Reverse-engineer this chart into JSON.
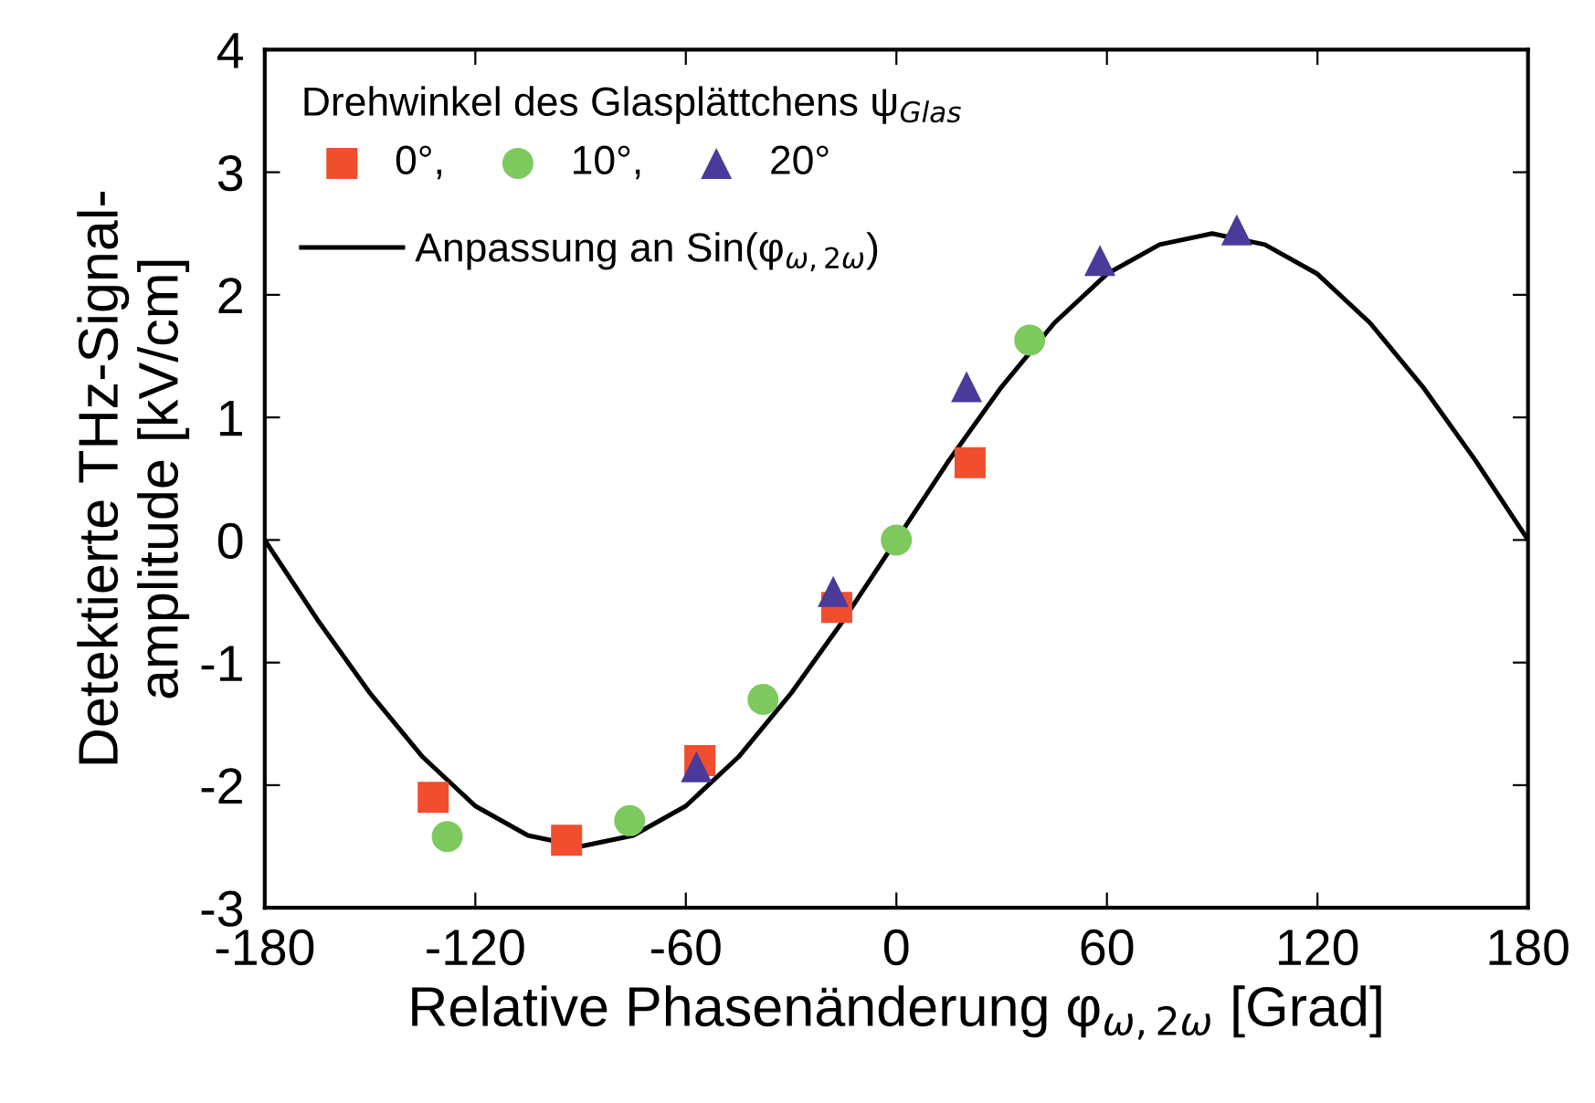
{
  "chart_data": {
    "type": "scatter",
    "xlabel": "Relative Phasenänderung φ$_{ω,2ω}$ [Grad]",
    "ylabel": "Detektierte THz-Signal-\namplitude [kV/cm]",
    "legend_title": "Drehwinkel des Glasplättchens ψ$_{Glas}$",
    "legend": "top left",
    "grid": false,
    "xlim": [
      -180,
      180
    ],
    "xticks": [
      -180,
      -120,
      -60,
      0,
      60,
      120,
      180
    ],
    "ylim": [
      -3,
      4
    ],
    "yticks": [
      -3,
      -2,
      -1,
      0,
      1,
      2,
      3,
      4
    ],
    "series": [
      {
        "name": "0°,",
        "marker": "square",
        "color": "#f04e2f",
        "x": [
          -132,
          -94,
          -56,
          -17,
          21
        ],
        "values": [
          -2.1,
          -2.45,
          -1.8,
          -0.55,
          0.63
        ]
      },
      {
        "name": "10°,",
        "marker": "circle",
        "color": "#7dc95e",
        "x": [
          -128,
          -76,
          -38,
          0,
          38
        ],
        "values": [
          -2.42,
          -2.29,
          -1.3,
          0.0,
          1.63
        ]
      },
      {
        "name": "20°",
        "marker": "triangle",
        "color": "#4a3b9a",
        "x": [
          -57,
          -18,
          20,
          58,
          97
        ],
        "values": [
          -1.85,
          -0.42,
          1.25,
          2.28,
          2.53
        ]
      },
      {
        "name": "Anpassung an Sin(φ$_{ω,2ω}$)",
        "type": "line",
        "marker": "none",
        "line_style": "solid",
        "color": "#000000",
        "x": [
          -180,
          -165,
          -150,
          -135,
          -120,
          -105,
          -90,
          -75,
          -60,
          -45,
          -30,
          -15,
          0,
          15,
          30,
          45,
          60,
          75,
          90,
          105,
          120,
          135,
          150,
          165,
          180
        ],
        "values": [
          0.0,
          -0.65,
          -1.25,
          -1.77,
          -2.17,
          -2.41,
          -2.5,
          -2.41,
          -2.17,
          -1.77,
          -1.25,
          -0.65,
          0.0,
          0.65,
          1.25,
          1.77,
          2.17,
          2.41,
          2.5,
          2.41,
          2.17,
          1.77,
          1.25,
          0.65,
          0.0
        ]
      }
    ]
  }
}
